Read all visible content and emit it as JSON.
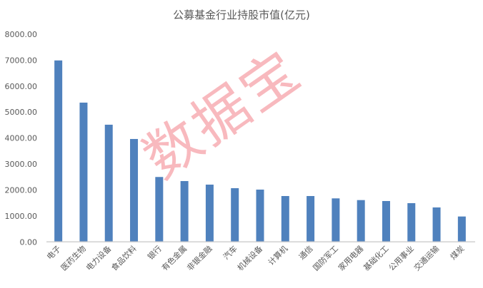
{
  "chart_data": {
    "type": "bar",
    "title": "公募基金行业持股市值(亿元)",
    "xlabel": "",
    "ylabel": "",
    "ylim": [
      0,
      8000
    ],
    "yticks": [
      "0.00",
      "1000.00",
      "2000.00",
      "3000.00",
      "4000.00",
      "5000.00",
      "6000.00",
      "7000.00",
      "8000.00"
    ],
    "grid": false,
    "legend": "none",
    "bar_color": "#4f81bd",
    "categories": [
      "电子",
      "医药生物",
      "电力设备",
      "食品饮料",
      "银行",
      "有色金属",
      "非银金融",
      "汽车",
      "机械设备",
      "计算机",
      "通信",
      "国防军工",
      "家用电器",
      "基础化工",
      "公用事业",
      "交通运输",
      "煤炭"
    ],
    "values": [
      6990,
      5365,
      4514,
      3964,
      2500,
      2343,
      2206,
      2069,
      2014,
      1766,
      1766,
      1676,
      1610,
      1574,
      1492,
      1327,
      978
    ]
  },
  "watermark": "数据宝"
}
